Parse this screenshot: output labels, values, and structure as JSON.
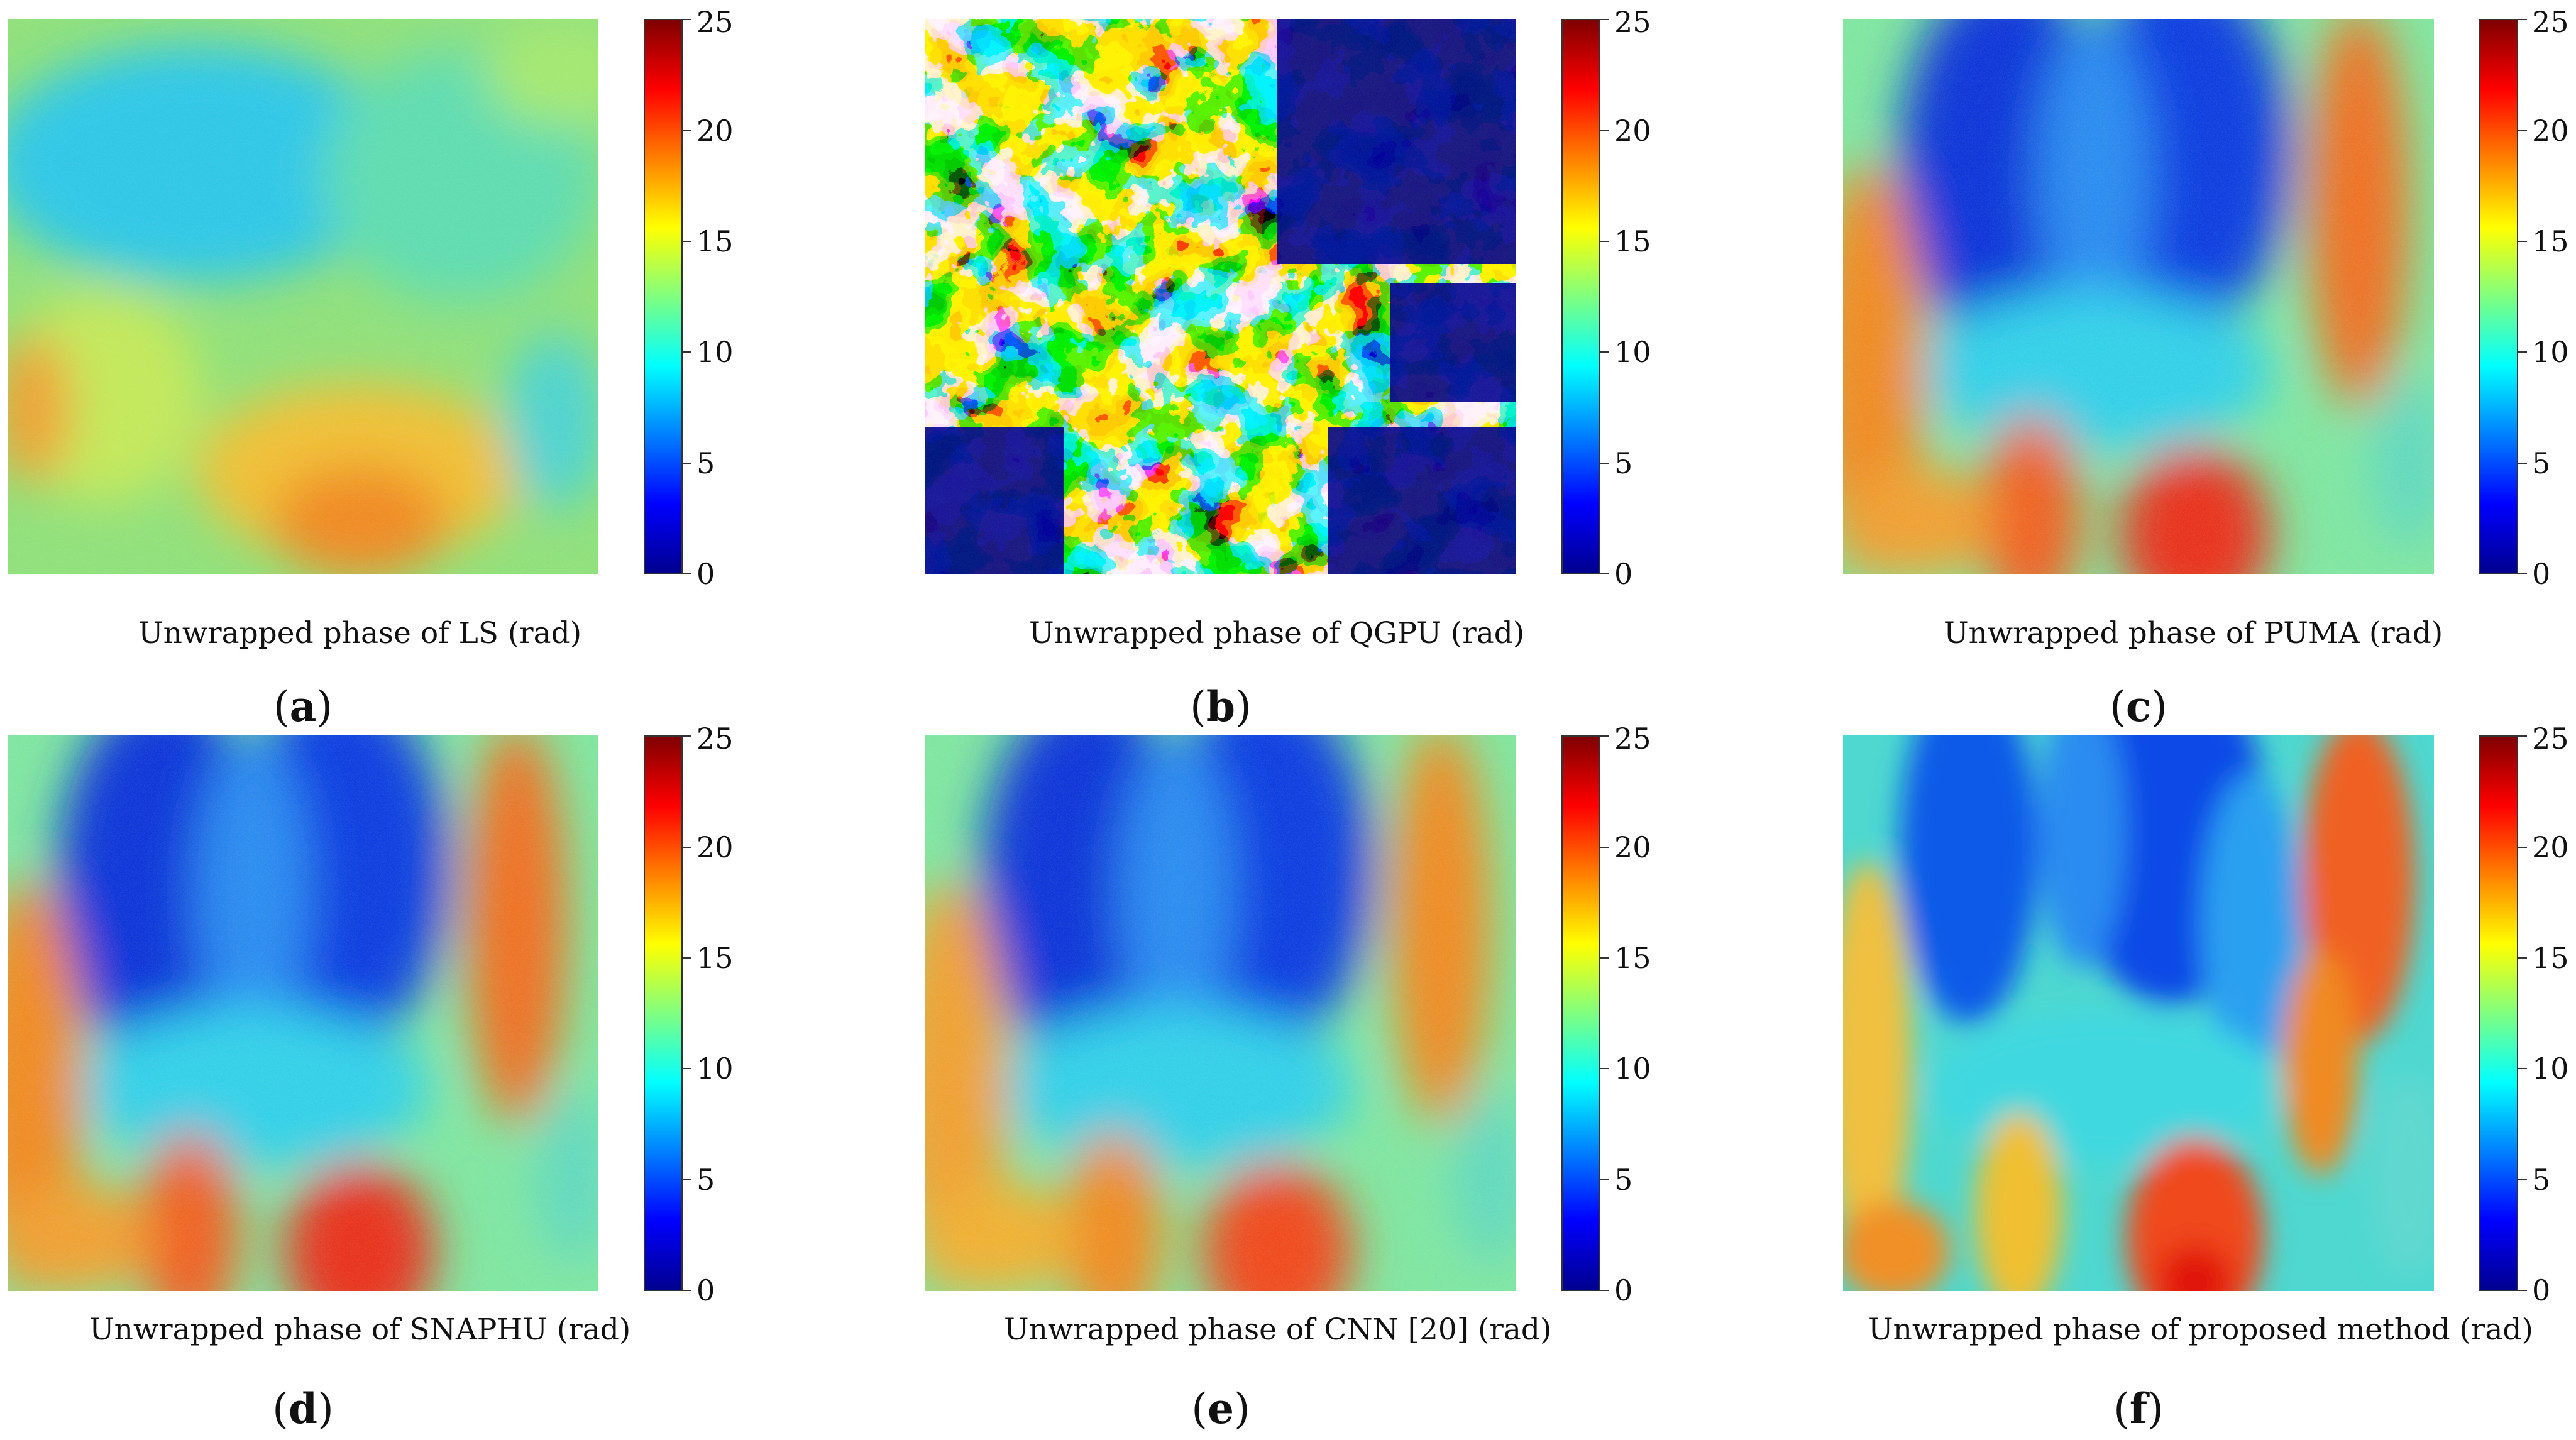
{
  "figure": {
    "colorbar": {
      "range": [
        0,
        25
      ],
      "ticks": [
        "0",
        "5",
        "10",
        "15",
        "20",
        "25"
      ],
      "colormap": [
        "#00008f",
        "#0000ff",
        "#0080ff",
        "#00ffff",
        "#80ff80",
        "#ffff00",
        "#ff8000",
        "#ff0000",
        "#800000"
      ]
    },
    "panels": [
      {
        "id": "a",
        "label_open": "(",
        "label_letter": "a",
        "label_close": ")",
        "caption": "Unwrapped phase of LS (rad)"
      },
      {
        "id": "b",
        "label_open": "(",
        "label_letter": "b",
        "label_close": ")",
        "caption": "Unwrapped phase of QGPU (rad)"
      },
      {
        "id": "c",
        "label_open": "(",
        "label_letter": "c",
        "label_close": ")",
        "caption": "Unwrapped phase of PUMA (rad)"
      },
      {
        "id": "d",
        "label_open": "(",
        "label_letter": "d",
        "label_close": ")",
        "caption": "Unwrapped phase of SNAPHU (rad)"
      },
      {
        "id": "e",
        "label_open": "(",
        "label_letter": "e",
        "label_close": ")",
        "caption": "Unwrapped phase of CNN [20] (rad)"
      },
      {
        "id": "f",
        "label_open": "(",
        "label_letter": "f",
        "label_close": ")",
        "caption": "Unwrapped phase of proposed method (rad)"
      }
    ]
  }
}
